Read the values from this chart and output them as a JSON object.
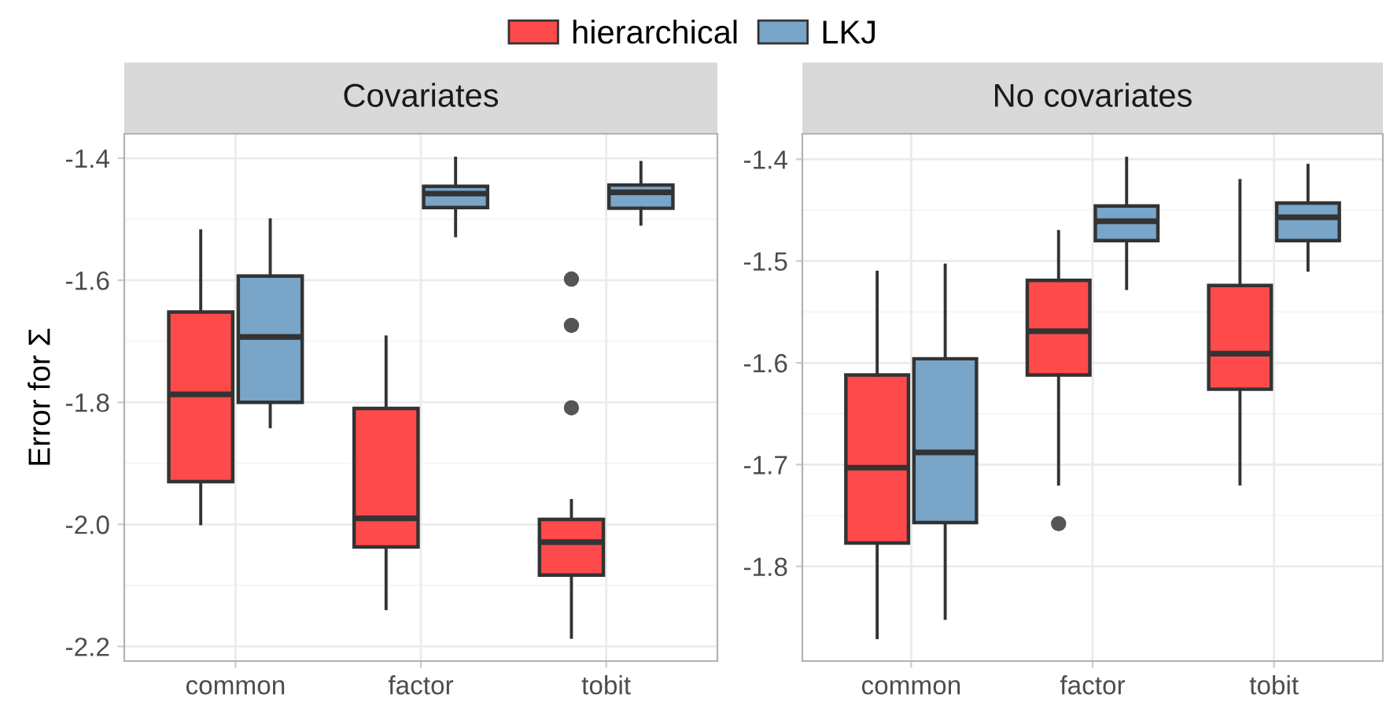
{
  "chart_data": [
    {
      "type": "box",
      "title": "Covariates",
      "ylabel": "Error for Σ",
      "categories": [
        "common",
        "factor",
        "tobit"
      ],
      "ylim": [
        -2.224,
        -1.36
      ],
      "yticks": [
        -2.2,
        {
          "value": -2.0,
          "label": "-2.0"
        },
        -1.8,
        -1.6,
        -1.4
      ],
      "grid": true,
      "legend": "top",
      "series": [
        {
          "name": "hierarchical",
          "color": "#fe4a4a",
          "boxes": [
            {
              "low": -1.999,
              "q1": -1.93,
              "median": -1.787,
              "q3": -1.652,
              "high": -1.519
            },
            {
              "low": -2.138,
              "q1": -2.037,
              "median": -1.99,
              "q3": -1.81,
              "high": -1.693
            },
            {
              "low": -2.185,
              "q1": -2.083,
              "median": -2.029,
              "q3": -1.992,
              "high": -1.961,
              "outliers": [
                -1.598,
                -1.674,
                -1.809
              ]
            }
          ]
        },
        {
          "name": "LKJ",
          "color": "#78a5c8",
          "boxes": [
            {
              "low": -1.84,
              "q1": -1.8,
              "median": -1.693,
              "q3": -1.593,
              "high": -1.501
            },
            {
              "low": -1.527,
              "q1": -1.481,
              "median": -1.458,
              "q3": -1.446,
              "high": -1.4
            },
            {
              "low": -1.508,
              "q1": -1.482,
              "median": -1.456,
              "q3": -1.444,
              "high": -1.407
            }
          ]
        }
      ]
    },
    {
      "type": "box",
      "title": "No covariates",
      "categories": [
        "common",
        "factor",
        "tobit"
      ],
      "ylim": [
        -1.893,
        -1.375
      ],
      "yticks": [
        -1.8,
        -1.7,
        -1.6,
        -1.5,
        -1.4
      ],
      "grid": true,
      "series": [
        {
          "color": "#fe4a4a",
          "boxes": [
            {
              "low": -1.87,
              "q1": -1.777,
              "median": -1.703,
              "q3": -1.612,
              "high": -1.511
            },
            {
              "low": -1.719,
              "q1": -1.612,
              "median": -1.569,
              "q3": -1.519,
              "high": -1.471,
              "outliers": [
                -1.758
              ]
            },
            {
              "low": -1.719,
              "q1": -1.626,
              "median": -1.591,
              "q3": -1.524,
              "high": -1.421
            }
          ]
        },
        {
          "color": "#78a5c8",
          "boxes": [
            {
              "low": -1.851,
              "q1": -1.757,
              "median": -1.688,
              "q3": -1.596,
              "high": -1.504
            },
            {
              "low": -1.527,
              "q1": -1.48,
              "median": -1.461,
              "q3": -1.446,
              "high": -1.399
            },
            {
              "low": -1.509,
              "q1": -1.48,
              "median": -1.457,
              "q3": -1.443,
              "high": -1.406
            }
          ]
        }
      ]
    }
  ]
}
